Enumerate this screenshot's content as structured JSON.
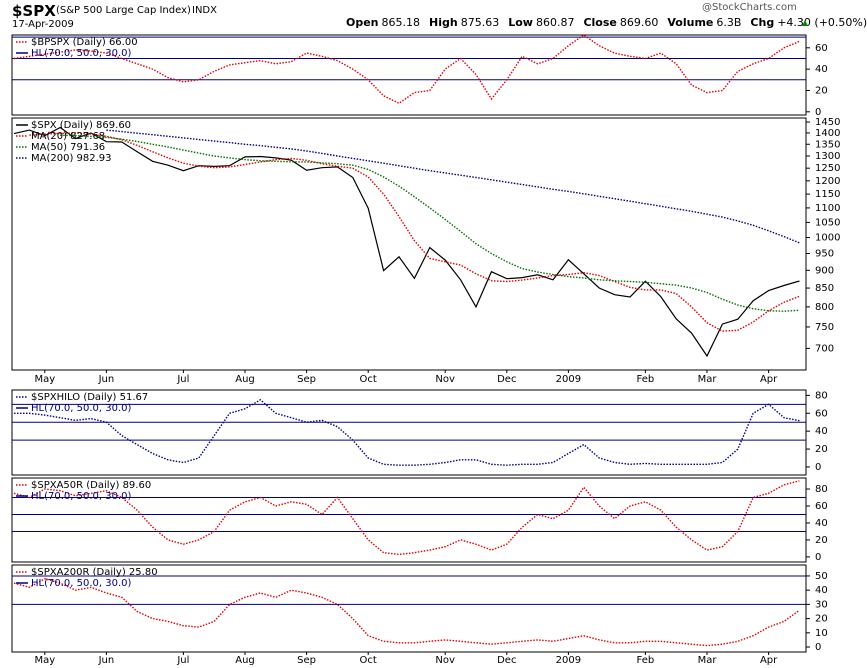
{
  "header": {
    "symbol": "$SPX",
    "description": "(S&P 500 Large Cap Index)",
    "exchange": "INDX",
    "date": "17-Apr-2009",
    "watermark": "@StockCharts.com",
    "quote": [
      {
        "label": "Open",
        "value": "865.18"
      },
      {
        "label": "High",
        "value": "875.63"
      },
      {
        "label": "Low",
        "value": "860.87"
      },
      {
        "label": "Close",
        "value": "869.60"
      },
      {
        "label": "Volume",
        "value": "6.3B"
      },
      {
        "label": "Chg",
        "value": "+4.30 (+0.50%)"
      }
    ]
  },
  "chart_data": [
    {
      "type": "line",
      "ylim": [
        -3,
        72
      ],
      "yticks": [
        0,
        20,
        40,
        60
      ],
      "hlines": [
        70,
        50,
        30
      ],
      "hline_color": "#000080",
      "hl_label": "HL(70.0, 50.0, 30.0)",
      "series": [
        {
          "name": "$BPSPX (Daily) 66.00",
          "color": "#e00000",
          "dotted": true,
          "values": [
            50,
            52,
            54,
            56,
            58,
            57,
            55,
            50,
            45,
            40,
            32,
            28,
            30,
            38,
            44,
            46,
            48,
            45,
            47,
            55,
            52,
            48,
            40,
            30,
            15,
            8,
            18,
            20,
            40,
            50,
            35,
            12,
            30,
            52,
            45,
            50,
            62,
            72,
            62,
            55,
            52,
            50,
            55,
            45,
            25,
            18,
            20,
            38,
            45,
            50,
            60,
            66
          ]
        }
      ]
    },
    {
      "type": "line",
      "log": true,
      "ylim": [
        653,
        1469
      ],
      "yticks": [
        700,
        750,
        800,
        850,
        900,
        950,
        1000,
        1050,
        1100,
        1150,
        1200,
        1250,
        1300,
        1350,
        1400,
        1450
      ],
      "categories": [
        null,
        null,
        "May",
        null,
        null,
        null,
        "Jun",
        null,
        null,
        null,
        null,
        "Jul",
        null,
        null,
        null,
        "Aug",
        null,
        null,
        null,
        "Sep",
        null,
        null,
        null,
        "Oct",
        null,
        null,
        null,
        null,
        "Nov",
        null,
        null,
        null,
        "Dec",
        null,
        null,
        null,
        "2009",
        null,
        null,
        null,
        null,
        "Feb",
        null,
        null,
        null,
        "Mar",
        null,
        null,
        null,
        "Apr",
        null,
        null
      ],
      "series": [
        {
          "name": "$SPX (Daily) 869.60",
          "color": "#000000",
          "dotted": false,
          "values": [
            1397,
            1413,
            1388,
            1425,
            1375,
            1400,
            1361,
            1360,
            1318,
            1278,
            1262,
            1240,
            1260,
            1257,
            1260,
            1296,
            1298,
            1292,
            1283,
            1242,
            1252,
            1255,
            1213,
            1099,
            899,
            940,
            877,
            968,
            930,
            873,
            800,
            896,
            876,
            879,
            887,
            873,
            931,
            890,
            850,
            832,
            826,
            869,
            827,
            770,
            735,
            683,
            757,
            769,
            816,
            843,
            857,
            869.6
          ]
        },
        {
          "name": "MA(20) 827.68",
          "color": "#e00000",
          "dotted": true,
          "values": [
            null,
            1390,
            1395,
            1398,
            1400,
            1395,
            1385,
            1370,
            1345,
            1318,
            1292,
            1270,
            1258,
            1252,
            1255,
            1265,
            1275,
            1285,
            1290,
            1282,
            1268,
            1258,
            1250,
            1215,
            1150,
            1070,
            990,
            935,
            925,
            915,
            890,
            870,
            868,
            872,
            878,
            885,
            888,
            893,
            885,
            868,
            852,
            845,
            845,
            835,
            800,
            760,
            740,
            742,
            762,
            790,
            812,
            827.68
          ]
        },
        {
          "name": "MA(50) 791.36",
          "color": "#007000",
          "dotted": true,
          "values": [
            null,
            null,
            null,
            1390,
            1388,
            1385,
            1380,
            1372,
            1362,
            1350,
            1338,
            1325,
            1312,
            1300,
            1292,
            1285,
            1280,
            1278,
            1276,
            1275,
            1272,
            1268,
            1262,
            1245,
            1215,
            1180,
            1140,
            1100,
            1060,
            1020,
            980,
            950,
            925,
            905,
            895,
            888,
            882,
            878,
            873,
            870,
            868,
            866,
            862,
            858,
            850,
            838,
            820,
            805,
            795,
            790,
            789,
            791.36
          ]
        },
        {
          "name": "MA(200) 982.93",
          "color": "#000080",
          "dotted": true,
          "values": [
            null,
            null,
            null,
            null,
            null,
            null,
            1413,
            1406,
            1399,
            1392,
            1385,
            1378,
            1371,
            1364,
            1357,
            1350,
            1344,
            1337,
            1330,
            1321,
            1311,
            1300,
            1290,
            1280,
            1270,
            1260,
            1250,
            1240,
            1231,
            1222,
            1213,
            1204,
            1195,
            1186,
            1177,
            1168,
            1160,
            1151,
            1142,
            1133,
            1124,
            1115,
            1106,
            1097,
            1088,
            1078,
            1068,
            1055,
            1040,
            1022,
            1003,
            982.93
          ]
        }
      ]
    },
    {
      "type": "line",
      "ylim": [
        -9,
        86
      ],
      "yticks": [
        0,
        20,
        40,
        60,
        80
      ],
      "hlines": [
        70,
        50,
        30
      ],
      "hline_color": "#000080",
      "hl_label": "HL(70.0, 50.0, 30.0)",
      "series": [
        {
          "name": "$SPXHILO (Daily) 51.67",
          "color": "#000080",
          "dotted": true,
          "values": [
            60,
            60,
            58,
            55,
            52,
            54,
            50,
            35,
            25,
            15,
            8,
            5,
            10,
            35,
            60,
            65,
            75,
            60,
            55,
            50,
            52,
            45,
            30,
            10,
            3,
            2,
            2,
            3,
            5,
            8,
            8,
            3,
            2,
            3,
            3,
            5,
            15,
            25,
            10,
            5,
            3,
            4,
            3,
            3,
            3,
            3,
            5,
            20,
            60,
            70,
            55,
            51.67
          ]
        }
      ]
    },
    {
      "type": "line",
      "ylim": [
        -6,
        93
      ],
      "yticks": [
        0,
        20,
        40,
        60,
        80
      ],
      "hlines": [
        70,
        50,
        30
      ],
      "hline_color": "#000080",
      "hl_label": "HL(70.0, 50.0, 30.0)",
      "series": [
        {
          "name": "$SPXA50R (Daily) 89.60",
          "color": "#e00000",
          "dotted": true,
          "values": [
            75,
            70,
            80,
            78,
            72,
            75,
            78,
            70,
            55,
            35,
            20,
            15,
            20,
            30,
            55,
            65,
            70,
            60,
            65,
            62,
            50,
            70,
            45,
            20,
            5,
            3,
            5,
            8,
            12,
            20,
            15,
            8,
            15,
            35,
            50,
            45,
            55,
            82,
            60,
            45,
            60,
            65,
            55,
            35,
            20,
            8,
            12,
            30,
            70,
            75,
            85,
            89.6
          ]
        }
      ]
    },
    {
      "type": "line",
      "ylim": [
        -3.5,
        57.7
      ],
      "yticks": [
        0,
        10,
        20,
        30,
        40,
        50
      ],
      "hlines": [
        50,
        30
      ],
      "hline_color": "#000080",
      "hl_label": "HL(70.0, 50.0, 30.0)",
      "categories": [
        null,
        null,
        "May",
        null,
        null,
        null,
        "Jun",
        null,
        null,
        null,
        null,
        "Jul",
        null,
        null,
        null,
        "Aug",
        null,
        null,
        null,
        "Sep",
        null,
        null,
        null,
        "Oct",
        null,
        null,
        null,
        null,
        "Nov",
        null,
        null,
        null,
        "Dec",
        null,
        null,
        null,
        "2009",
        null,
        null,
        null,
        null,
        "Feb",
        null,
        null,
        null,
        "Mar",
        null,
        null,
        null,
        "Apr",
        null,
        null
      ],
      "series": [
        {
          "name": "$SPXA200R (Daily) 25.80",
          "color": "#e00000",
          "dotted": true,
          "values": [
            45,
            42,
            48,
            45,
            40,
            42,
            38,
            35,
            25,
            20,
            18,
            15,
            14,
            18,
            30,
            35,
            38,
            35,
            40,
            38,
            35,
            30,
            20,
            8,
            4,
            3,
            3,
            4,
            5,
            4,
            3,
            2,
            3,
            4,
            5,
            4,
            6,
            8,
            5,
            3,
            3,
            4,
            4,
            3,
            2,
            1,
            2,
            4,
            8,
            14,
            18,
            25.8
          ]
        }
      ]
    }
  ]
}
